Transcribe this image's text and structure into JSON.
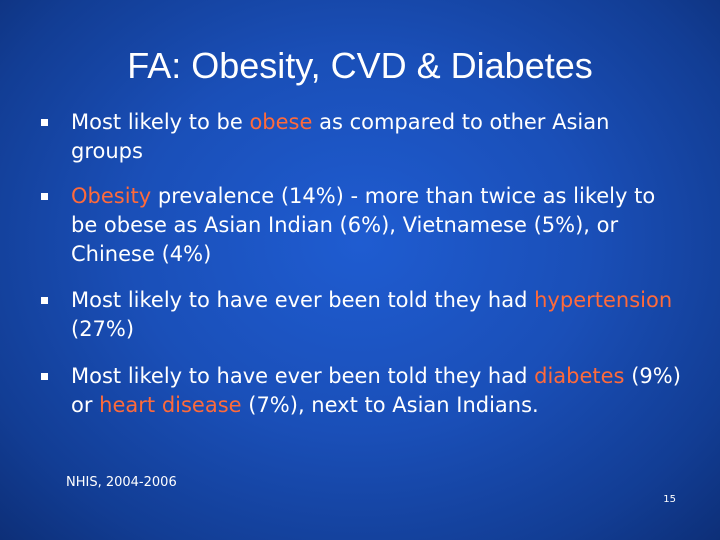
{
  "slide": {
    "title": "FA: Obesity, CVD & Diabetes",
    "bullets": [
      {
        "parts": [
          {
            "text": "Most likely to be ",
            "highlight": false
          },
          {
            "text": "obese",
            "highlight": true
          },
          {
            "text": " as compared to other Asian groups",
            "highlight": false
          }
        ]
      },
      {
        "parts": [
          {
            "text": "Obesity",
            "highlight": true
          },
          {
            "text": " prevalence (14%) - more than twice as likely to be obese as Asian Indian (6%), Vietnamese (5%), or Chinese (4%)",
            "highlight": false
          }
        ]
      },
      {
        "parts": [
          {
            "text": "Most likely to have ever been told they had ",
            "highlight": false
          },
          {
            "text": "hypertension",
            "highlight": true
          },
          {
            "text": " (27%)",
            "highlight": false
          }
        ]
      },
      {
        "parts": [
          {
            "text": "Most likely to have ever been told they had ",
            "highlight": false
          },
          {
            "text": "diabetes",
            "highlight": true
          },
          {
            "text": " (9%) or ",
            "highlight": false
          },
          {
            "text": "heart disease",
            "highlight": true
          },
          {
            "text": " (7%), next to Asian Indians.",
            "highlight": false
          }
        ]
      }
    ],
    "source": "NHIS, 2004-2006",
    "page_number": "15"
  },
  "colors": {
    "highlight": "#ff6a3a",
    "text": "#ffffff",
    "background": "#1a4fb8"
  }
}
